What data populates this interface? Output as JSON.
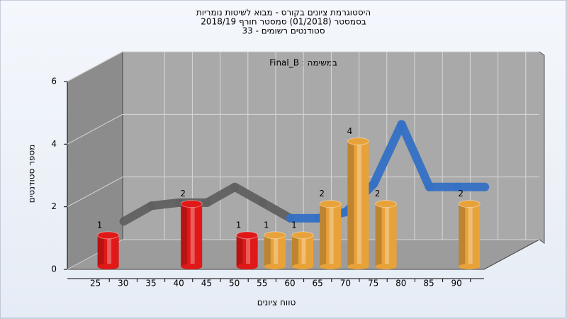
{
  "chart_data": {
    "type": "bar3d",
    "title": "היסטוגרמת ציונים בקורס - מבוא לשיטות נומריות",
    "subtitle": "בסמסטר  (01/2018)  סמסטר חורף 2018/19",
    "subtitle2": "סטודנטים רשומים - 33",
    "annotation": "במשימה : Final_B",
    "x_label": "טווח ציונים",
    "y_label": "מספר סטודנטים",
    "categories": [
      "25",
      "30",
      "35",
      "40",
      "45",
      "50",
      "55",
      "60",
      "65",
      "70",
      "75",
      "80",
      "85",
      "90"
    ],
    "values": [
      1,
      0,
      0,
      2,
      0,
      1,
      1,
      1,
      2,
      4,
      2,
      0,
      0,
      2
    ],
    "colors": [
      "#e01818",
      "#e01818",
      "#e01818",
      "#e01818",
      "#e01818",
      "#e01818",
      "#e8a23a",
      "#e8a23a",
      "#e8a23a",
      "#e8a23a",
      "#e8a23a",
      "#e8a23a",
      "#e8a23a",
      "#e8a23a"
    ],
    "trend": {
      "values": [
        0.4,
        0.9,
        1.0,
        1.0,
        1.5,
        1.0,
        0.5,
        0.5,
        0.7,
        1.6,
        3.5,
        1.5,
        1.5,
        1.5
      ],
      "colors": [
        "#606060",
        "#606060",
        "#606060",
        "#606060",
        "#606060",
        "#606060",
        "#3470c4",
        "#3470c4",
        "#3470c4",
        "#3470c4",
        "#3470c4",
        "#3470c4",
        "#3470c4",
        "#3470c4"
      ]
    },
    "ylim": [
      0,
      6
    ],
    "yticks": [
      0,
      2,
      4,
      6
    ],
    "grid": true
  }
}
